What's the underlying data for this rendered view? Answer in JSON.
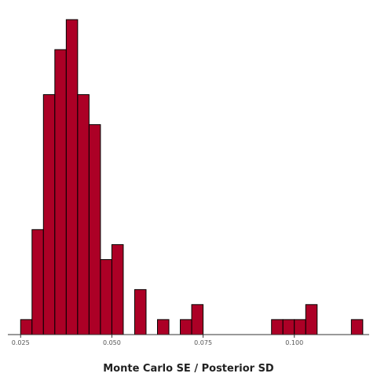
{
  "chart_data": {
    "type": "bar",
    "subtype": "histogram",
    "title": "",
    "xlabel": "Monte Carlo SE / Posterior SD",
    "ylabel": "",
    "bin_width": 0.003125,
    "bins_start": 0.025,
    "counts": [
      1,
      7,
      16,
      19,
      21,
      16,
      14,
      5,
      6,
      0,
      3,
      0,
      1,
      0,
      1,
      2,
      0,
      0,
      0,
      0,
      0,
      0,
      1,
      1,
      1,
      2,
      0,
      0,
      0,
      1
    ],
    "xlim": [
      0.0215,
      0.1205
    ],
    "ylim": [
      0,
      21
    ],
    "xticks": [
      0.025,
      0.05,
      0.075,
      0.1
    ],
    "xtick_labels": [
      "0.025",
      "0.050",
      "0.075",
      "0.100"
    ],
    "y_axis_visible": false,
    "grid": false,
    "legend": "none",
    "bar_fill": "#ac0026",
    "bar_stroke": "#000000",
    "axis_color": "#333333"
  }
}
